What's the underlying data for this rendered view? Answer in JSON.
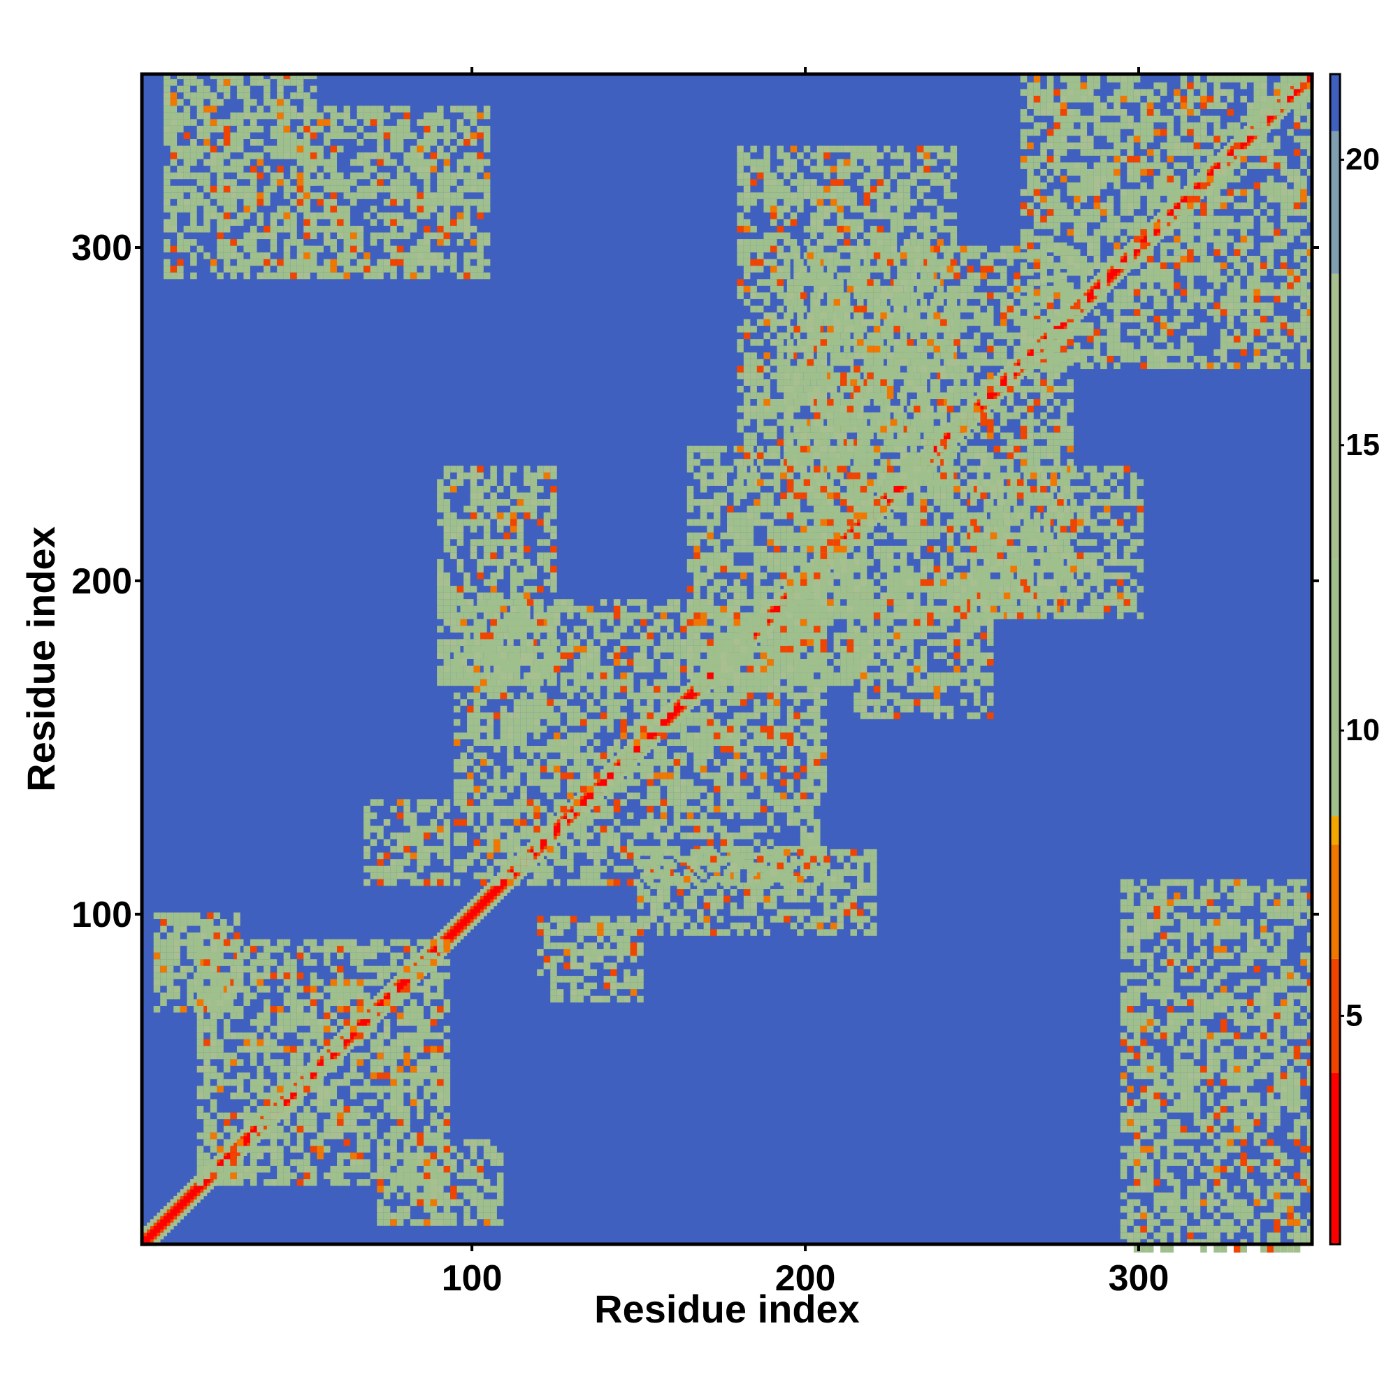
{
  "chart_data": {
    "type": "heatmap",
    "title": "",
    "xlabel": "Residue index",
    "ylabel": "Residue index",
    "xlim": [
      1,
      352
    ],
    "ylim": [
      1,
      352
    ],
    "x_ticks": [
      100,
      200,
      300
    ],
    "y_ticks": [
      100,
      200,
      300
    ],
    "colorbar": {
      "label": "",
      "range": [
        1,
        21.5
      ],
      "ticks": [
        5,
        10,
        15,
        20
      ],
      "stops": [
        {
          "value": 1,
          "color": "#ff0000"
        },
        {
          "value": 4,
          "color": "#f04400"
        },
        {
          "value": 6,
          "color": "#f07800"
        },
        {
          "value": 8,
          "color": "#f5a500"
        },
        {
          "value": 8.5,
          "color": "#9fc08c"
        },
        {
          "value": 13,
          "color": "#a8c090"
        },
        {
          "value": 18,
          "color": "#7f9fb0"
        },
        {
          "value": 20.5,
          "color": "#4060c0"
        },
        {
          "value": 21.5,
          "color": "#0000ff"
        }
      ]
    },
    "background_value": 21.5,
    "diagonal_band": {
      "core_value": 2,
      "width_residues": 4
    },
    "contact_regions": [
      {
        "i": [
          8,
          52
        ],
        "j": [
          292,
          352
        ],
        "value": 11
      },
      {
        "i": [
          50,
          105
        ],
        "j": [
          292,
          342
        ],
        "value": 11
      },
      {
        "i": [
          5,
          30
        ],
        "j": [
          72,
          100
        ],
        "value": 11
      },
      {
        "i": [
          18,
          92
        ],
        "j": [
          20,
          92
        ],
        "value": 11
      },
      {
        "i": [
          72,
          108
        ],
        "j": [
          8,
          32
        ],
        "value": 11
      },
      {
        "i": [
          68,
          92
        ],
        "j": [
          110,
          135
        ],
        "value": 11
      },
      {
        "i": [
          90,
          125
        ],
        "j": [
          170,
          235
        ],
        "value": 11
      },
      {
        "i": [
          95,
          205
        ],
        "j": [
          110,
          195
        ],
        "value": 12
      },
      {
        "i": [
          120,
          150
        ],
        "j": [
          75,
          100
        ],
        "value": 11
      },
      {
        "i": [
          150,
          220
        ],
        "j": [
          95,
          120
        ],
        "value": 11
      },
      {
        "i": [
          165,
          220
        ],
        "j": [
          170,
          240
        ],
        "value": 11
      },
      {
        "i": [
          180,
          245
        ],
        "j": [
          230,
          330
        ],
        "value": 11
      },
      {
        "i": [
          195,
          280
        ],
        "j": [
          190,
          300
        ],
        "value": 12
      },
      {
        "i": [
          215,
          255
        ],
        "j": [
          160,
          200
        ],
        "value": 11
      },
      {
        "i": [
          250,
          300
        ],
        "j": [
          190,
          235
        ],
        "value": 11
      },
      {
        "i": [
          265,
          352
        ],
        "j": [
          265,
          352
        ],
        "value": 12
      },
      {
        "i": [
          295,
          352
        ],
        "j": [
          0,
          110
        ],
        "value": 11
      }
    ]
  }
}
